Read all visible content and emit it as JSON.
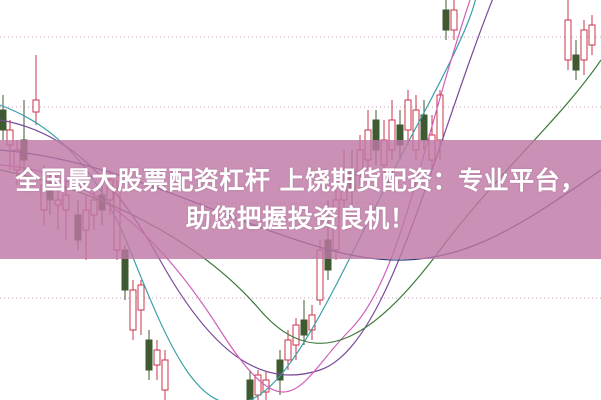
{
  "article": {
    "title_line1": "全国最大股票配资杠杆 上饶期货配资：专业平台，",
    "title_line2": "助您把握投资良机！"
  },
  "colors": {
    "banner": "#c48cb5",
    "candle_up": "#c8334b",
    "candle_down": "#3f5a30",
    "ma_lines": [
      "#3aa0a8",
      "#7a4a9a",
      "#d060b8",
      "#3e7a3a",
      "#2f3a7a"
    ]
  },
  "icons": []
}
